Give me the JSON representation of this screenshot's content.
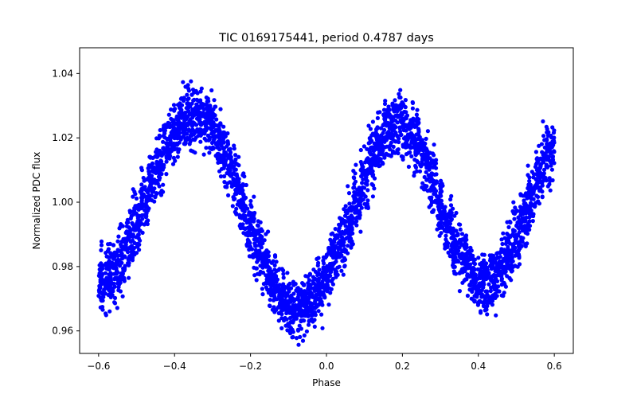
{
  "chart_data": {
    "type": "scatter",
    "title": "TIC 0169175441, period 0.4787 days",
    "xlabel": "Phase",
    "ylabel": "Normalized PDC flux",
    "xlim": [
      -0.65,
      0.65
    ],
    "ylim": [
      0.953,
      1.048
    ],
    "x_ticks": [
      -0.6,
      -0.4,
      -0.2,
      0.0,
      0.2,
      0.4,
      0.6
    ],
    "x_tick_labels": [
      "−0.6",
      "−0.4",
      "−0.2",
      "0.0",
      "0.2",
      "0.4",
      "0.6"
    ],
    "y_ticks": [
      0.96,
      0.98,
      1.0,
      1.02,
      1.04
    ],
    "y_tick_labels": [
      "0.96",
      "0.98",
      "1.00",
      "1.02",
      "1.04"
    ],
    "grid": false,
    "marker_color": "#0000ff",
    "series": [
      {
        "x": [
          -0.6,
          -0.58,
          -0.56,
          -0.54,
          -0.52,
          -0.5,
          -0.48,
          -0.46,
          -0.44,
          -0.42,
          -0.4,
          -0.38,
          -0.36,
          -0.34,
          -0.32,
          -0.3,
          -0.28,
          -0.26,
          -0.24,
          -0.22,
          -0.2,
          -0.18,
          -0.16,
          -0.14,
          -0.12,
          -0.1,
          -0.08,
          -0.06,
          -0.04,
          -0.02,
          0.0,
          0.02,
          0.04,
          0.06,
          0.08,
          0.1,
          0.12,
          0.14,
          0.16,
          0.18,
          0.2,
          0.22,
          0.24,
          0.26,
          0.28,
          0.3,
          0.32,
          0.34,
          0.36,
          0.38,
          0.4,
          0.42,
          0.44,
          0.46,
          0.48,
          0.5,
          0.52,
          0.54,
          0.56,
          0.58,
          0.6
        ],
        "y": [
          0.976,
          0.976,
          0.978,
          0.982,
          0.987,
          0.993,
          0.999,
          1.006,
          1.012,
          1.018,
          1.022,
          1.025,
          1.027,
          1.027,
          1.026,
          1.023,
          1.018,
          1.012,
          1.006,
          0.999,
          0.992,
          0.986,
          0.98,
          0.975,
          0.971,
          0.968,
          0.967,
          0.968,
          0.97,
          0.973,
          0.977,
          0.982,
          0.988,
          0.994,
          1.001,
          1.007,
          1.013,
          1.018,
          1.022,
          1.024,
          1.024,
          1.022,
          1.018,
          1.013,
          1.007,
          1.0,
          0.993,
          0.987,
          0.982,
          0.978,
          0.975,
          0.975,
          0.977,
          0.98,
          0.984,
          0.989,
          0.995,
          1.001,
          1.008,
          1.014,
          1.017
        ]
      }
    ]
  }
}
